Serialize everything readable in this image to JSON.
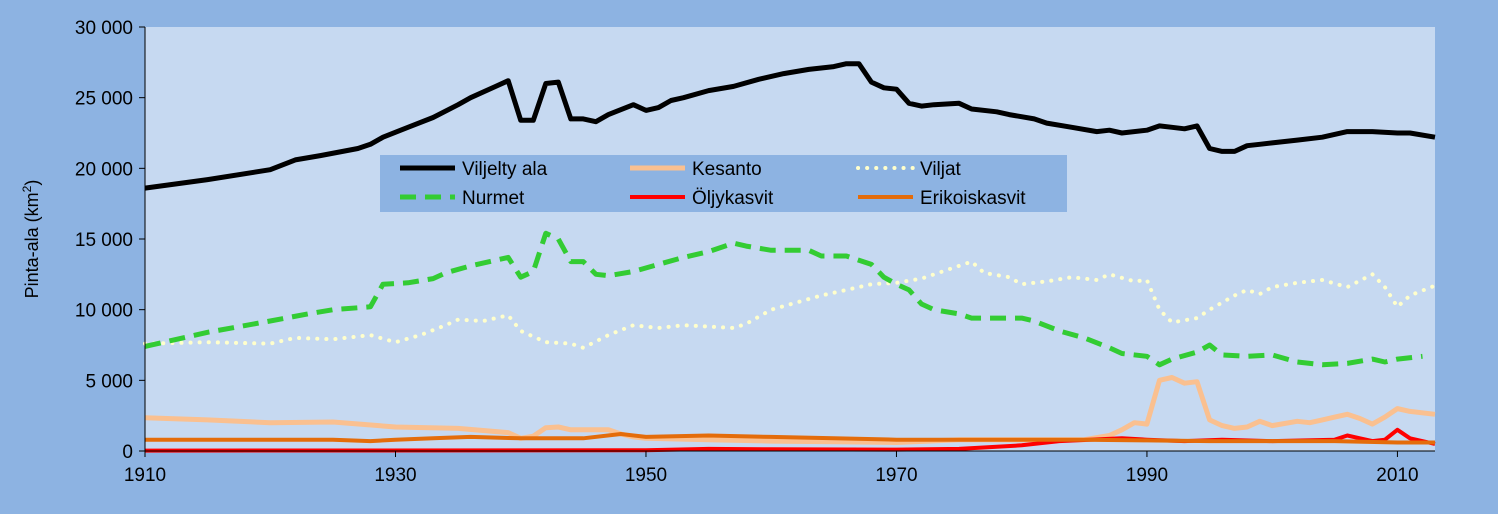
{
  "chart_data": {
    "type": "line",
    "title": "",
    "xlabel": "",
    "ylabel_main": "Pinta-ala (km",
    "ylabel_sup": "2",
    "ylabel_close": ")",
    "xlim": [
      1910,
      2013
    ],
    "ylim": [
      0,
      30000
    ],
    "x_ticks": [
      1910,
      1930,
      1950,
      1970,
      1990,
      2010
    ],
    "x_tick_labels": [
      "1910",
      "1930",
      "1950",
      "1970",
      "1990",
      "2010"
    ],
    "y_ticks": [
      0,
      5000,
      10000,
      15000,
      20000,
      25000,
      30000
    ],
    "y_tick_labels": [
      "0",
      "5 000",
      "10 000",
      "15 000",
      "20 000",
      "25 000",
      "30 000"
    ],
    "grid": "none",
    "legend_placement": "upper-left-center",
    "plot_background": "#c6d9f1",
    "figure_background": "#8db3e2",
    "legend_background": "#8db3e2",
    "series": [
      {
        "name": "Viljelty ala",
        "color": "#000000",
        "style": "solid",
        "width": 5,
        "points": [
          [
            1910,
            18600
          ],
          [
            1915,
            19200
          ],
          [
            1920,
            19900
          ],
          [
            1922,
            20600
          ],
          [
            1924,
            20900
          ],
          [
            1927,
            21400
          ],
          [
            1928,
            21700
          ],
          [
            1929,
            22200
          ],
          [
            1931,
            22900
          ],
          [
            1933,
            23600
          ],
          [
            1935,
            24500
          ],
          [
            1936,
            25000
          ],
          [
            1938,
            25800
          ],
          [
            1939,
            26200
          ],
          [
            1940,
            23400
          ],
          [
            1941,
            23400
          ],
          [
            1942,
            26000
          ],
          [
            1943,
            26100
          ],
          [
            1944,
            23500
          ],
          [
            1945,
            23500
          ],
          [
            1946,
            23300
          ],
          [
            1947,
            23800
          ],
          [
            1949,
            24500
          ],
          [
            1950,
            24100
          ],
          [
            1951,
            24300
          ],
          [
            1952,
            24800
          ],
          [
            1953,
            25000
          ],
          [
            1955,
            25500
          ],
          [
            1957,
            25800
          ],
          [
            1959,
            26300
          ],
          [
            1961,
            26700
          ],
          [
            1963,
            27000
          ],
          [
            1965,
            27200
          ],
          [
            1966,
            27400
          ],
          [
            1967,
            27400
          ],
          [
            1968,
            26100
          ],
          [
            1969,
            25700
          ],
          [
            1970,
            25600
          ],
          [
            1971,
            24600
          ],
          [
            1972,
            24400
          ],
          [
            1973,
            24500
          ],
          [
            1975,
            24600
          ],
          [
            1976,
            24200
          ],
          [
            1978,
            24000
          ],
          [
            1979,
            23800
          ],
          [
            1981,
            23500
          ],
          [
            1982,
            23200
          ],
          [
            1984,
            22900
          ],
          [
            1986,
            22600
          ],
          [
            1987,
            22700
          ],
          [
            1988,
            22500
          ],
          [
            1990,
            22700
          ],
          [
            1991,
            23000
          ],
          [
            1992,
            22900
          ],
          [
            1993,
            22800
          ],
          [
            1994,
            23000
          ],
          [
            1995,
            21400
          ],
          [
            1996,
            21200
          ],
          [
            1997,
            21200
          ],
          [
            1998,
            21600
          ],
          [
            1999,
            21700
          ],
          [
            2000,
            21800
          ],
          [
            2002,
            22000
          ],
          [
            2004,
            22200
          ],
          [
            2006,
            22600
          ],
          [
            2008,
            22600
          ],
          [
            2010,
            22500
          ],
          [
            2011,
            22500
          ],
          [
            2013,
            22200
          ]
        ]
      },
      {
        "name": "Kesanto",
        "color": "#fac090",
        "style": "solid",
        "width": 5,
        "points": [
          [
            1910,
            2350
          ],
          [
            1915,
            2200
          ],
          [
            1920,
            2000
          ],
          [
            1925,
            2050
          ],
          [
            1930,
            1700
          ],
          [
            1935,
            1600
          ],
          [
            1939,
            1300
          ],
          [
            1940,
            900
          ],
          [
            1941,
            1050
          ],
          [
            1942,
            1650
          ],
          [
            1943,
            1700
          ],
          [
            1944,
            1500
          ],
          [
            1945,
            1500
          ],
          [
            1947,
            1500
          ],
          [
            1948,
            1200
          ],
          [
            1949,
            1000
          ],
          [
            1950,
            900
          ],
          [
            1955,
            800
          ],
          [
            1960,
            700
          ],
          [
            1965,
            650
          ],
          [
            1970,
            600
          ],
          [
            1975,
            800
          ],
          [
            1980,
            800
          ],
          [
            1985,
            800
          ],
          [
            1987,
            1100
          ],
          [
            1988,
            1500
          ],
          [
            1989,
            2000
          ],
          [
            1990,
            1900
          ],
          [
            1991,
            5000
          ],
          [
            1992,
            5200
          ],
          [
            1993,
            4800
          ],
          [
            1994,
            4900
          ],
          [
            1995,
            2200
          ],
          [
            1996,
            1800
          ],
          [
            1997,
            1600
          ],
          [
            1998,
            1700
          ],
          [
            1999,
            2100
          ],
          [
            2000,
            1800
          ],
          [
            2002,
            2100
          ],
          [
            2003,
            2000
          ],
          [
            2004,
            2200
          ],
          [
            2005,
            2400
          ],
          [
            2006,
            2600
          ],
          [
            2007,
            2300
          ],
          [
            2008,
            1900
          ],
          [
            2009,
            2400
          ],
          [
            2010,
            3000
          ],
          [
            2011,
            2800
          ],
          [
            2013,
            2600
          ]
        ]
      },
      {
        "name": "Viljat",
        "color": "#ffffcc",
        "style": "dotted",
        "width": 4,
        "points": [
          [
            1910,
            7600
          ],
          [
            1915,
            7700
          ],
          [
            1920,
            7600
          ],
          [
            1922,
            8000
          ],
          [
            1925,
            7900
          ],
          [
            1928,
            8200
          ],
          [
            1930,
            7700
          ],
          [
            1932,
            8200
          ],
          [
            1934,
            8900
          ],
          [
            1935,
            9300
          ],
          [
            1937,
            9200
          ],
          [
            1939,
            9600
          ],
          [
            1940,
            8500
          ],
          [
            1942,
            7700
          ],
          [
            1944,
            7600
          ],
          [
            1945,
            7300
          ],
          [
            1947,
            8200
          ],
          [
            1949,
            8900
          ],
          [
            1951,
            8700
          ],
          [
            1953,
            8900
          ],
          [
            1955,
            8800
          ],
          [
            1957,
            8700
          ],
          [
            1958,
            9000
          ],
          [
            1960,
            10000
          ],
          [
            1962,
            10500
          ],
          [
            1964,
            11000
          ],
          [
            1966,
            11400
          ],
          [
            1968,
            11800
          ],
          [
            1970,
            11900
          ],
          [
            1972,
            12200
          ],
          [
            1974,
            12800
          ],
          [
            1976,
            13400
          ],
          [
            1977,
            12600
          ],
          [
            1979,
            12300
          ],
          [
            1980,
            11800
          ],
          [
            1982,
            12000
          ],
          [
            1984,
            12300
          ],
          [
            1986,
            12100
          ],
          [
            1987,
            12500
          ],
          [
            1989,
            12000
          ],
          [
            1990,
            12100
          ],
          [
            1991,
            10000
          ],
          [
            1992,
            9100
          ],
          [
            1994,
            9400
          ],
          [
            1995,
            10000
          ],
          [
            1997,
            11000
          ],
          [
            1998,
            11400
          ],
          [
            1999,
            11100
          ],
          [
            2000,
            11600
          ],
          [
            2002,
            11900
          ],
          [
            2004,
            12100
          ],
          [
            2006,
            11600
          ],
          [
            2008,
            12500
          ],
          [
            2009,
            11600
          ],
          [
            2010,
            10200
          ],
          [
            2011,
            11000
          ],
          [
            2013,
            11700
          ]
        ]
      },
      {
        "name": "Nurmet",
        "color": "#33cc33",
        "style": "dashed",
        "width": 5,
        "points": [
          [
            1910,
            7400
          ],
          [
            1915,
            8400
          ],
          [
            1920,
            9200
          ],
          [
            1923,
            9700
          ],
          [
            1925,
            10000
          ],
          [
            1928,
            10200
          ],
          [
            1929,
            11800
          ],
          [
            1931,
            11900
          ],
          [
            1933,
            12200
          ],
          [
            1934,
            12600
          ],
          [
            1936,
            13100
          ],
          [
            1939,
            13700
          ],
          [
            1940,
            12300
          ],
          [
            1941,
            12700
          ],
          [
            1942,
            15400
          ],
          [
            1943,
            15000
          ],
          [
            1944,
            13400
          ],
          [
            1945,
            13400
          ],
          [
            1946,
            12500
          ],
          [
            1947,
            12400
          ],
          [
            1949,
            12700
          ],
          [
            1951,
            13200
          ],
          [
            1953,
            13700
          ],
          [
            1955,
            14100
          ],
          [
            1957,
            14700
          ],
          [
            1958,
            14500
          ],
          [
            1960,
            14200
          ],
          [
            1963,
            14200
          ],
          [
            1964,
            13800
          ],
          [
            1966,
            13800
          ],
          [
            1968,
            13200
          ],
          [
            1969,
            12300
          ],
          [
            1970,
            11800
          ],
          [
            1971,
            11400
          ],
          [
            1972,
            10400
          ],
          [
            1973,
            10000
          ],
          [
            1975,
            9700
          ],
          [
            1976,
            9400
          ],
          [
            1978,
            9400
          ],
          [
            1980,
            9400
          ],
          [
            1981,
            9200
          ],
          [
            1983,
            8500
          ],
          [
            1985,
            8000
          ],
          [
            1987,
            7300
          ],
          [
            1988,
            6900
          ],
          [
            1990,
            6700
          ],
          [
            1991,
            6100
          ],
          [
            1992,
            6500
          ],
          [
            1994,
            7000
          ],
          [
            1995,
            7500
          ],
          [
            1996,
            6800
          ],
          [
            1998,
            6700
          ],
          [
            2000,
            6800
          ],
          [
            2002,
            6300
          ],
          [
            2004,
            6100
          ],
          [
            2006,
            6200
          ],
          [
            2008,
            6500
          ],
          [
            2009,
            6300
          ],
          [
            2010,
            6500
          ],
          [
            2012,
            6700
          ]
        ]
      },
      {
        "name": "Öljykasvit",
        "color": "#ff0000",
        "style": "solid",
        "width": 4,
        "points": [
          [
            1910,
            30
          ],
          [
            1950,
            50
          ],
          [
            1955,
            150
          ],
          [
            1960,
            120
          ],
          [
            1970,
            100
          ],
          [
            1975,
            150
          ],
          [
            1978,
            300
          ],
          [
            1980,
            400
          ],
          [
            1983,
            700
          ],
          [
            1988,
            900
          ],
          [
            1990,
            800
          ],
          [
            1993,
            700
          ],
          [
            1996,
            800
          ],
          [
            2000,
            700
          ],
          [
            2005,
            800
          ],
          [
            2006,
            1100
          ],
          [
            2007,
            900
          ],
          [
            2008,
            700
          ],
          [
            2009,
            800
          ],
          [
            2010,
            1500
          ],
          [
            2011,
            900
          ],
          [
            2013,
            500
          ]
        ]
      },
      {
        "name": "Erikoiskasvit",
        "color": "#e46c0a",
        "style": "solid",
        "width": 4,
        "points": [
          [
            1910,
            800
          ],
          [
            1920,
            800
          ],
          [
            1925,
            800
          ],
          [
            1928,
            700
          ],
          [
            1930,
            800
          ],
          [
            1933,
            900
          ],
          [
            1936,
            1000
          ],
          [
            1940,
            900
          ],
          [
            1945,
            900
          ],
          [
            1948,
            1200
          ],
          [
            1950,
            1000
          ],
          [
            1955,
            1100
          ],
          [
            1960,
            1000
          ],
          [
            1965,
            900
          ],
          [
            1970,
            800
          ],
          [
            1975,
            800
          ],
          [
            1980,
            800
          ],
          [
            1985,
            800
          ],
          [
            1990,
            750
          ],
          [
            1995,
            700
          ],
          [
            2000,
            700
          ],
          [
            2005,
            700
          ],
          [
            2010,
            600
          ],
          [
            2013,
            600
          ]
        ]
      }
    ]
  }
}
